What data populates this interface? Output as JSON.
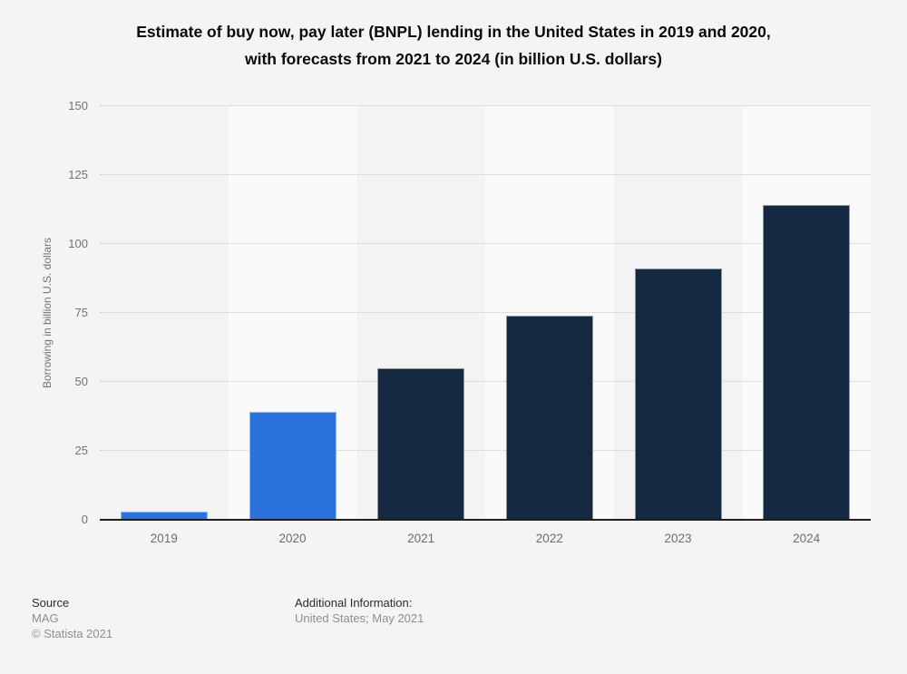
{
  "title": {
    "lines": [
      "Estimate of buy now, pay later (BNPL) lending in the United States in 2019 and 2020,",
      "with forecasts from 2021 to 2024 (in billion U.S. dollars)"
    ]
  },
  "y_axis": {
    "label": "Borrowing in billion U.S. dollars"
  },
  "footer": {
    "source_label": "Source",
    "source_name": "MAG",
    "copyright": "© Statista 2021",
    "additional_info_label": "Additional Information:",
    "additional_info_value": "United States; May 2021"
  },
  "colors": {
    "actual_bar": "#2a73dc",
    "forecast_bar": "#142840",
    "band_dark": "#f3f3f4",
    "band_light": "#fafafa",
    "gridline": "#c6c6c6",
    "axis_line": "#1f1f1f"
  },
  "chart_data": {
    "type": "bar",
    "title": "Estimate of buy now, pay later (BNPL) lending in the United States in 2019 and 2020, with forecasts from 2021 to 2024 (in billion U.S. dollars)",
    "categories": [
      "2019",
      "2020",
      "2021",
      "2022",
      "2023",
      "2024"
    ],
    "values": [
      3,
      39,
      55,
      74,
      91,
      114
    ],
    "bar_colors": [
      "#2a73dc",
      "#2a73dc",
      "#142840",
      "#142840",
      "#142840",
      "#142840"
    ],
    "xlabel": "",
    "ylabel": "Borrowing in billion U.S. dollars",
    "ylim": [
      0,
      150
    ],
    "yticks": [
      0,
      25,
      50,
      75,
      100,
      125,
      150
    ],
    "grid": "horizontal-dotted",
    "legend": "none"
  }
}
